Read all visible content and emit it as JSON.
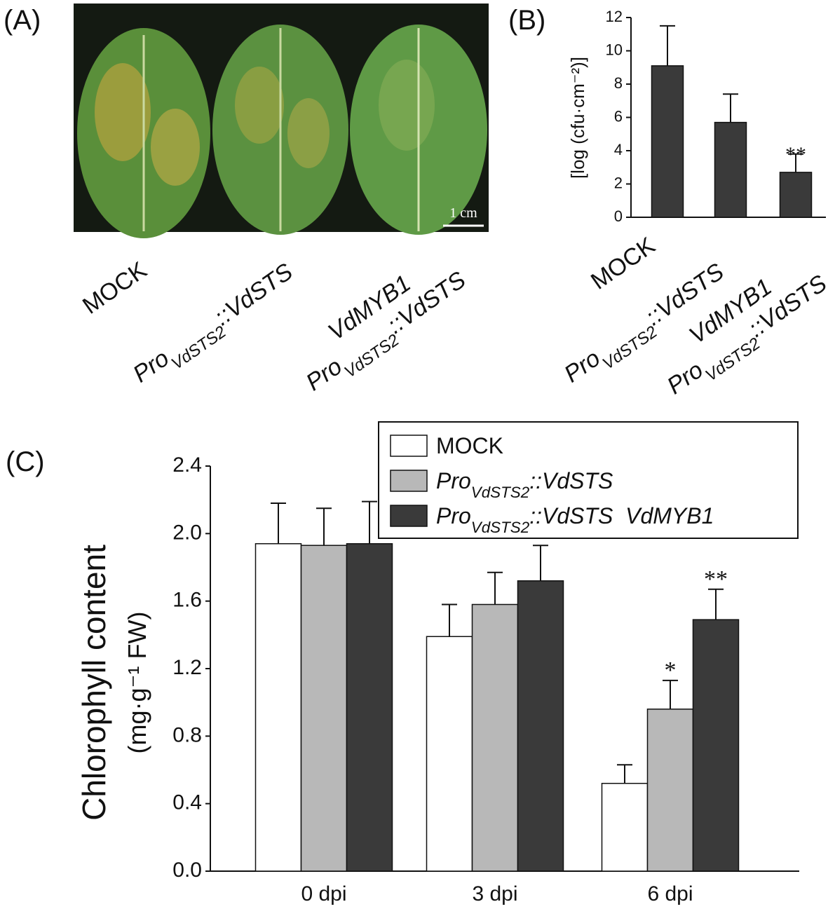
{
  "panel_a": {
    "label": "(A)",
    "scale_bar": "1 cm",
    "categories": [
      "MOCK",
      "ProVdSTS2::VdSTS",
      "VdMYB1\nProVdSTS2::VdSTS"
    ]
  },
  "chart_data": [
    {
      "type": "bar",
      "panel_label": "(B)",
      "ylabel": "[log (cfu·cm⁻²)]",
      "categories": [
        "MOCK",
        "ProVdSTS2::VdSTS",
        "VdMYB1\nProVdSTS2::VdSTS"
      ],
      "values": [
        9.1,
        5.7,
        2.7
      ],
      "errors": [
        2.4,
        1.7,
        1.1
      ],
      "color": "#3a3a3a",
      "ylim": [
        0,
        12
      ],
      "yticks": [
        0,
        2,
        4,
        6,
        8,
        10,
        12
      ],
      "annotations": [
        {
          "index": 2,
          "text": "**"
        }
      ]
    },
    {
      "type": "grouped_bar",
      "panel_label": "(C)",
      "ylabel": [
        "Chlorophyll content",
        "(mg·g⁻¹ FW)"
      ],
      "categories": [
        "0 dpi",
        "3 dpi",
        "6 dpi"
      ],
      "series": [
        {
          "name": "MOCK",
          "color": "#ffffff",
          "values": [
            1.94,
            1.39,
            0.52
          ],
          "errors": [
            0.24,
            0.19,
            0.11
          ]
        },
        {
          "name": "ProVdSTS2::VdSTS",
          "color": "#b8b8b8",
          "values": [
            1.93,
            1.58,
            0.96
          ],
          "errors": [
            0.22,
            0.19,
            0.17
          ]
        },
        {
          "name": "ProVdSTS2::VdSTS  VdMYB1",
          "color": "#3a3a3a",
          "values": [
            1.94,
            1.72,
            1.49
          ],
          "errors": [
            0.25,
            0.21,
            0.18
          ]
        }
      ],
      "ylim": [
        0,
        2.4
      ],
      "yticks": [
        {
          "value": 0,
          "label": "0.0"
        },
        0.4,
        0.8,
        1.2,
        1.6,
        {
          "value": 2,
          "label": "2.0"
        },
        2.4
      ],
      "legend": "top-right",
      "annotations": [
        {
          "series": 1,
          "index": 2,
          "text": "*"
        },
        {
          "series": 2,
          "index": 2,
          "text": "**"
        }
      ]
    }
  ]
}
